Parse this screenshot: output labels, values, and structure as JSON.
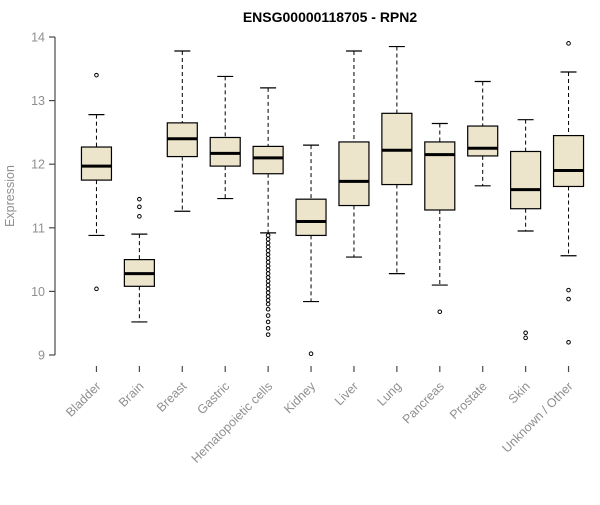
{
  "chart_data": {
    "type": "boxplot",
    "title": "ENSG00000118705 - RPN2",
    "ylabel": "Expression",
    "xlabel": "",
    "ylim": [
      9,
      14
    ],
    "yticks": [
      9,
      10,
      11,
      12,
      13,
      14
    ],
    "grid": false,
    "legend": "none",
    "categories": [
      "Bladder",
      "Brain",
      "Breast",
      "Gastric",
      "Hematopoietic cells",
      "Kidney",
      "Liver",
      "Lung",
      "Pancreas",
      "Prostate",
      "Skin",
      "Unknown / Other"
    ],
    "series": [
      {
        "category": "Bladder",
        "whisker_low": 10.88,
        "q1": 11.75,
        "median": 11.97,
        "q3": 12.27,
        "whisker_high": 12.78,
        "outliers": [
          13.4,
          10.04
        ]
      },
      {
        "category": "Brain",
        "whisker_low": 9.52,
        "q1": 10.08,
        "median": 10.28,
        "q3": 10.5,
        "whisker_high": 10.9,
        "outliers": [
          11.45,
          11.33,
          11.18
        ]
      },
      {
        "category": "Breast",
        "whisker_low": 11.26,
        "q1": 12.12,
        "median": 12.4,
        "q3": 12.65,
        "whisker_high": 13.78,
        "outliers": []
      },
      {
        "category": "Gastric",
        "whisker_low": 11.46,
        "q1": 11.97,
        "median": 12.17,
        "q3": 12.42,
        "whisker_high": 13.38,
        "outliers": []
      },
      {
        "category": "Hematopoietic cells",
        "whisker_low": 10.92,
        "q1": 11.85,
        "median": 12.1,
        "q3": 12.28,
        "whisker_high": 13.2,
        "outliers": [
          10.88,
          10.82,
          10.76,
          10.7,
          10.64,
          10.58,
          10.52,
          10.46,
          10.4,
          10.34,
          10.28,
          10.22,
          10.16,
          10.1,
          10.04,
          9.98,
          9.92,
          9.86,
          9.8,
          9.72,
          9.62,
          9.52,
          9.42,
          9.32
        ],
        "note": "dense column of low outliers"
      },
      {
        "category": "Kidney",
        "whisker_low": 9.84,
        "q1": 10.88,
        "median": 11.1,
        "q3": 11.45,
        "whisker_high": 12.3,
        "outliers": [
          9.02
        ]
      },
      {
        "category": "Liver",
        "whisker_low": 10.54,
        "q1": 11.35,
        "median": 11.73,
        "q3": 12.35,
        "whisker_high": 13.78,
        "outliers": []
      },
      {
        "category": "Lung",
        "whisker_low": 10.28,
        "q1": 11.68,
        "median": 12.22,
        "q3": 12.8,
        "whisker_high": 13.85,
        "outliers": []
      },
      {
        "category": "Pancreas",
        "whisker_low": 10.1,
        "q1": 11.28,
        "median": 12.15,
        "q3": 12.35,
        "whisker_high": 12.64,
        "outliers": [
          9.68
        ]
      },
      {
        "category": "Prostate",
        "whisker_low": 11.66,
        "q1": 12.13,
        "median": 12.25,
        "q3": 12.6,
        "whisker_high": 13.3,
        "outliers": []
      },
      {
        "category": "Skin",
        "whisker_low": 10.95,
        "q1": 11.3,
        "median": 11.6,
        "q3": 12.2,
        "whisker_high": 12.7,
        "outliers": [
          9.35,
          9.27
        ]
      },
      {
        "category": "Unknown / Other",
        "whisker_low": 10.56,
        "q1": 11.65,
        "median": 11.9,
        "q3": 12.45,
        "whisker_high": 13.45,
        "outliers": [
          13.9,
          10.02,
          9.88,
          9.2
        ]
      }
    ],
    "colors": {
      "box_fill": "#ece4cb",
      "box_stroke": "#000000",
      "median_stroke": "#000000",
      "whisker_stroke": "#000000",
      "axis_color": "#4a4a4a",
      "label_color": "#8f8f8f",
      "title_color": "#000000",
      "background": "#ffffff"
    }
  }
}
